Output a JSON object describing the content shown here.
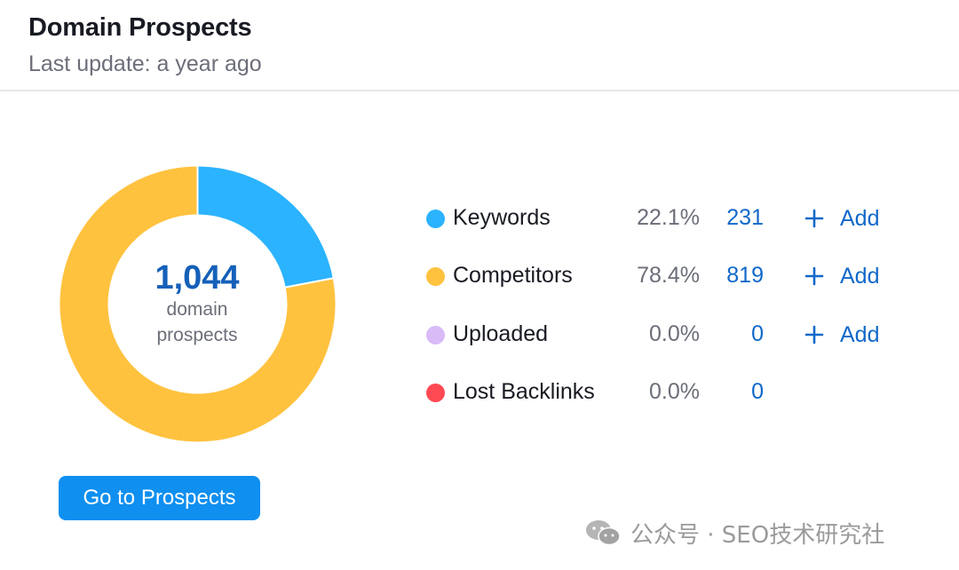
{
  "header": {
    "title": "Domain Prospects",
    "subtitle": "Last update: a year ago"
  },
  "summary": {
    "total": "1,044",
    "total_label_line1": "domain",
    "total_label_line2": "prospects"
  },
  "chart_data": {
    "type": "pie",
    "categories": [
      "Keywords",
      "Competitors",
      "Uploaded",
      "Lost Backlinks"
    ],
    "values": [
      231,
      819,
      0,
      0
    ],
    "percentages": [
      22.1,
      78.4,
      0.0,
      0.0
    ],
    "colors": [
      "#2bb3ff",
      "#ffc23f",
      "#d9bbf8",
      "#ff4953"
    ],
    "center_text": "1,044 domain prospects",
    "title": ""
  },
  "legend": [
    {
      "label": "Keywords",
      "percent": "22.1%",
      "count": "231",
      "add_label": "Add",
      "color": "#2bb3ff"
    },
    {
      "label": "Competitors",
      "percent": "78.4%",
      "count": "819",
      "add_label": "Add",
      "color": "#ffc23f"
    },
    {
      "label": "Uploaded",
      "percent": "0.0%",
      "count": "0",
      "add_label": "Add",
      "color": "#d9bbf8"
    },
    {
      "label": "Lost Backlinks",
      "percent": "0.0%",
      "count": "0",
      "color": "#ff4953"
    }
  ],
  "actions": {
    "go_label": "Go to Prospects"
  },
  "watermark": {
    "text": "公众号 · SEO技术研究社",
    "icon": "wechat-icon"
  }
}
